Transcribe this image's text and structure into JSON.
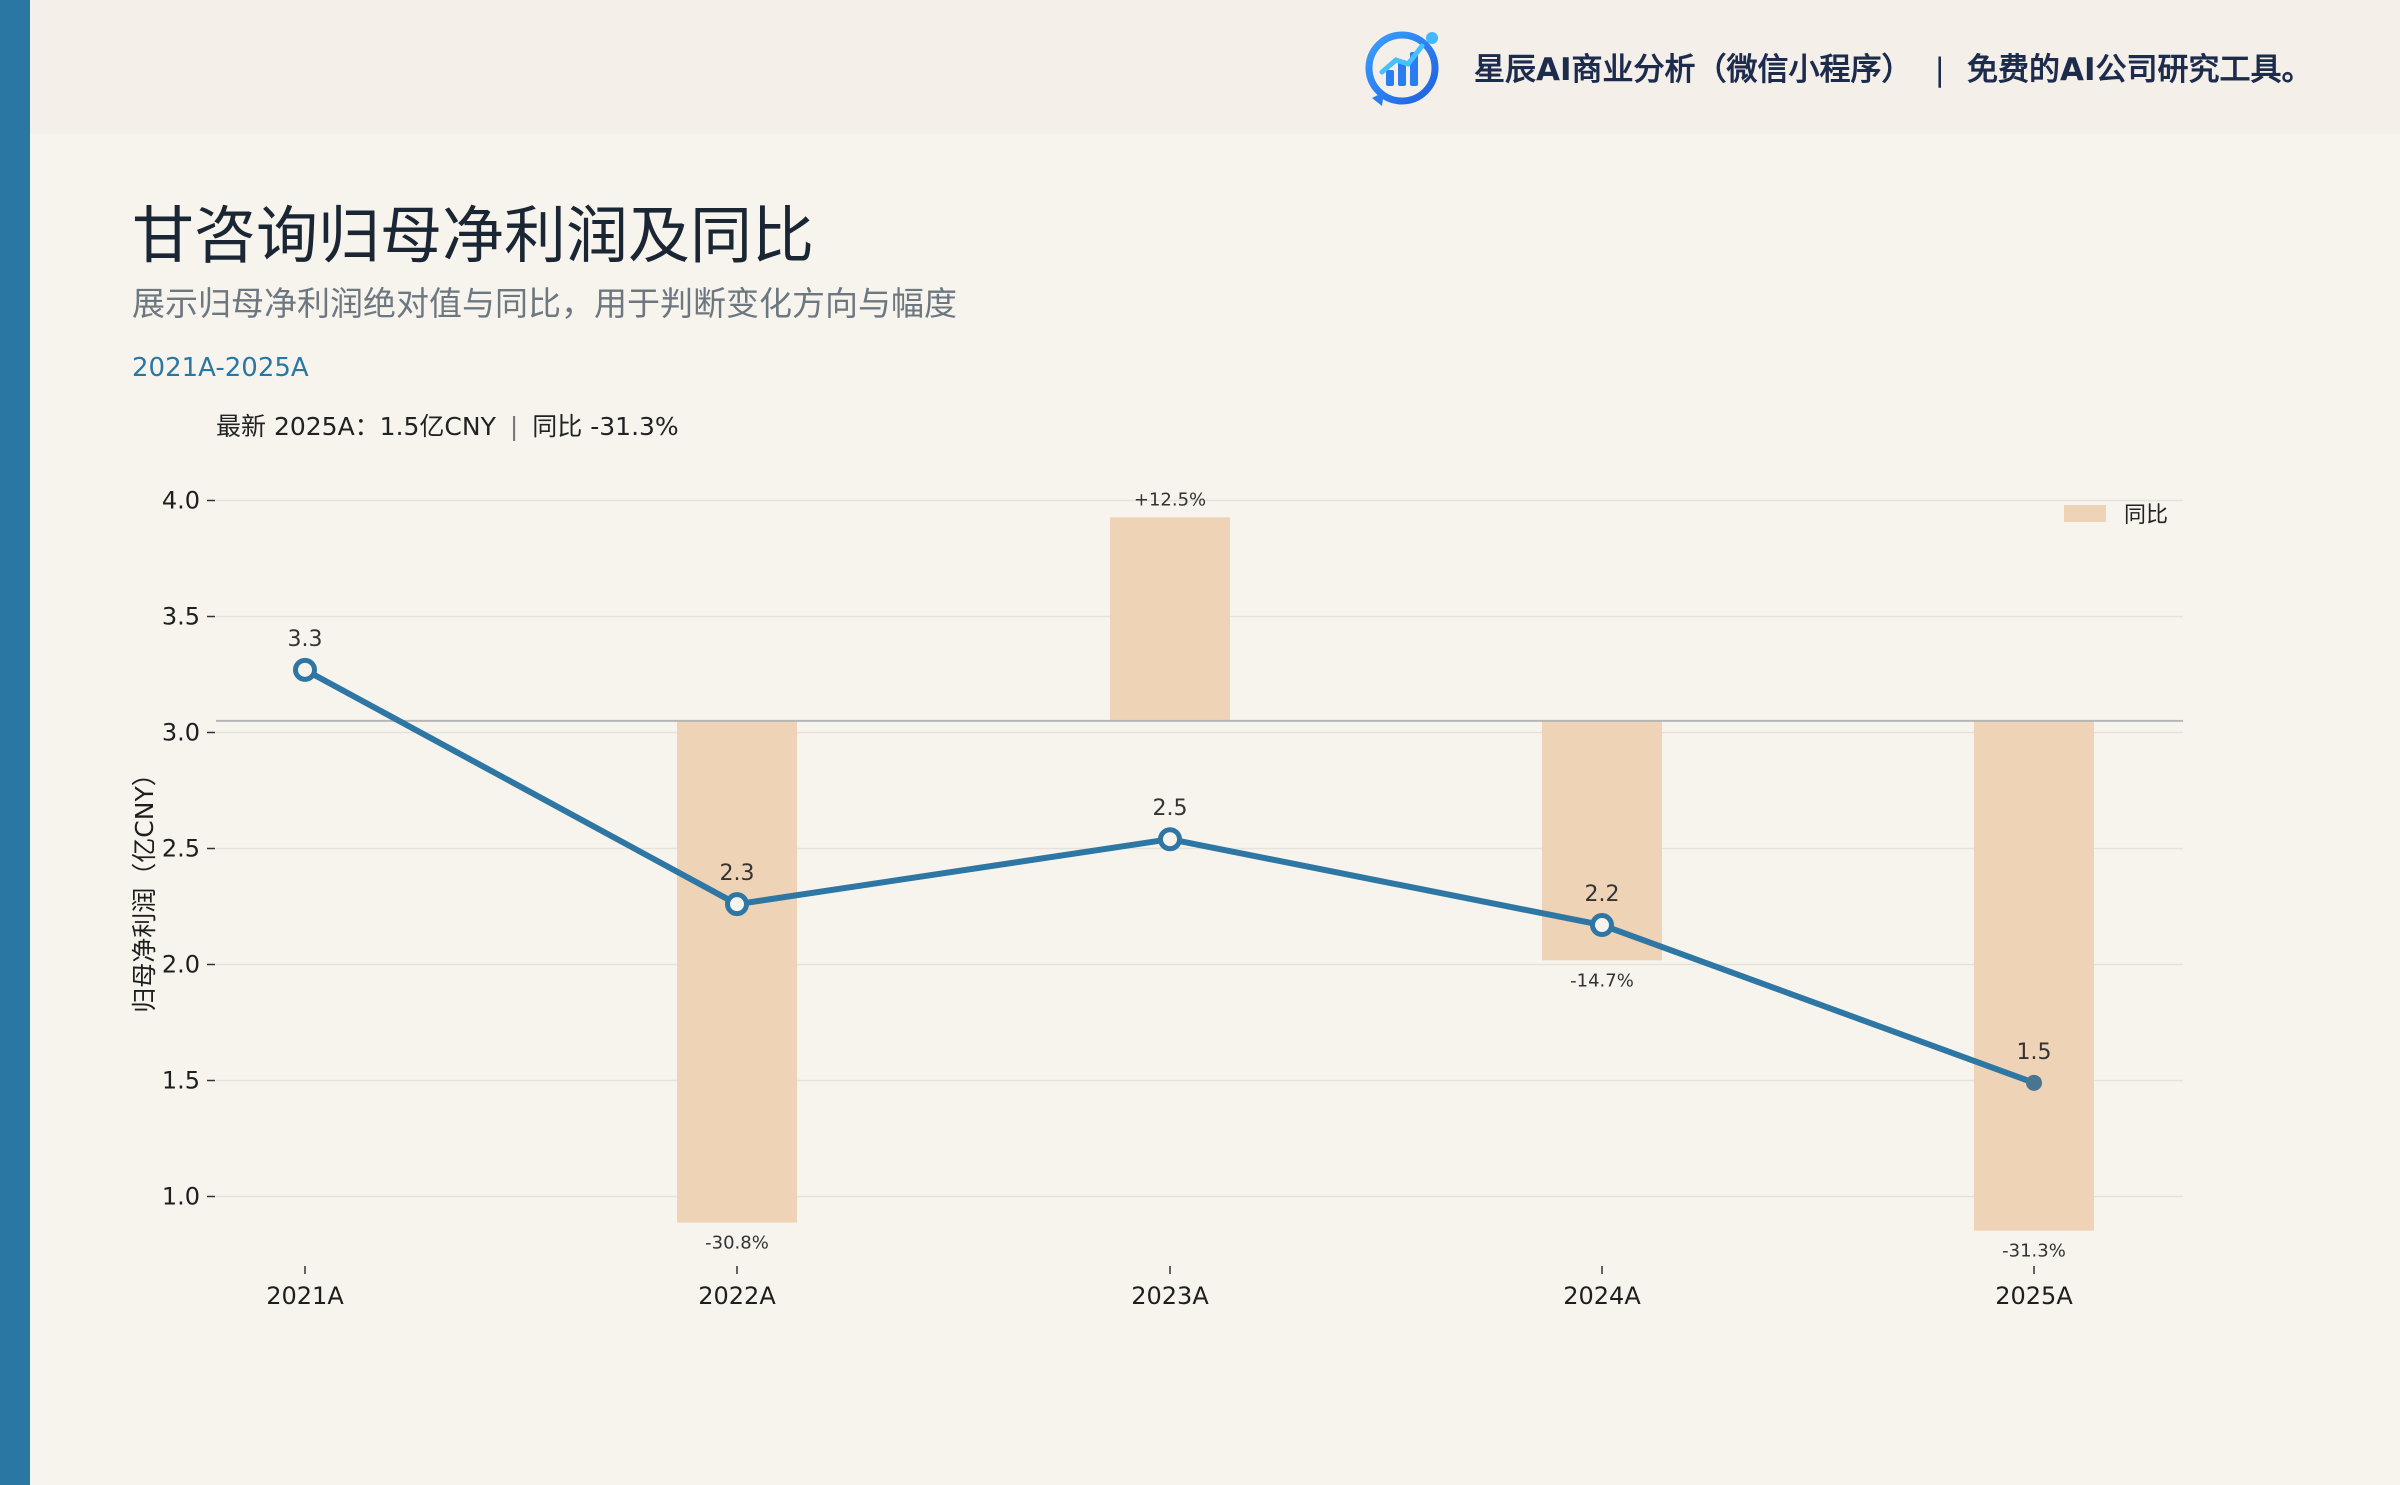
{
  "brand": {
    "name": "星辰AI商业分析（微信小程序）",
    "separator": "|",
    "tagline": "免费的AI公司研究工具。",
    "logo_icon": "bar-chart-logo-icon"
  },
  "header": {
    "title": "甘咨询归母净利润及同比",
    "subtitle": "展示归母净利润绝对值与同比，用于判断变化方向与幅度",
    "period": "2021A-2025A",
    "latest_label": "最新 2025A：1.5亿CNY",
    "latest_sep": "|",
    "latest_yoy": "同比 -31.3%"
  },
  "colors": {
    "accent": "#2a77a4",
    "line": "#2e76a3",
    "bar": "#efd3b6",
    "baseline": "#b6b6b6",
    "grid": "#e6e2da"
  },
  "chart_data": {
    "type": "line",
    "categories": [
      "2021A",
      "2022A",
      "2023A",
      "2024A",
      "2025A"
    ],
    "series": [
      {
        "name": "",
        "axis": "left",
        "type": "line",
        "values": [
          3.27,
          2.26,
          2.54,
          2.17,
          1.49
        ],
        "labels": [
          "3.3",
          "2.3",
          "2.5",
          "2.2",
          "1.5"
        ]
      },
      {
        "name": "同比",
        "axis": "right",
        "type": "bar",
        "values": [
          null,
          -30.8,
          12.5,
          -14.7,
          -31.3
        ],
        "labels": [
          "",
          "-30.8%",
          "+12.5%",
          "-14.7%",
          "-31.3%"
        ]
      }
    ],
    "ylabel": "归母净利润（亿CNY）",
    "ylim": [
      0.7,
      4.0
    ],
    "yticks": [
      1.0,
      1.5,
      2.0,
      2.5,
      3.0,
      3.5,
      4.0
    ],
    "ytick_labels": [
      "1.0",
      "1.5",
      "2.0",
      "2.5",
      "3.0",
      "3.5",
      "4.0"
    ],
    "y2_zero_at": 3.05,
    "y2_units_per_percent": 0.0702,
    "grid": true,
    "legend": {
      "position": "top-right",
      "entries": [
        "同比"
      ]
    }
  }
}
